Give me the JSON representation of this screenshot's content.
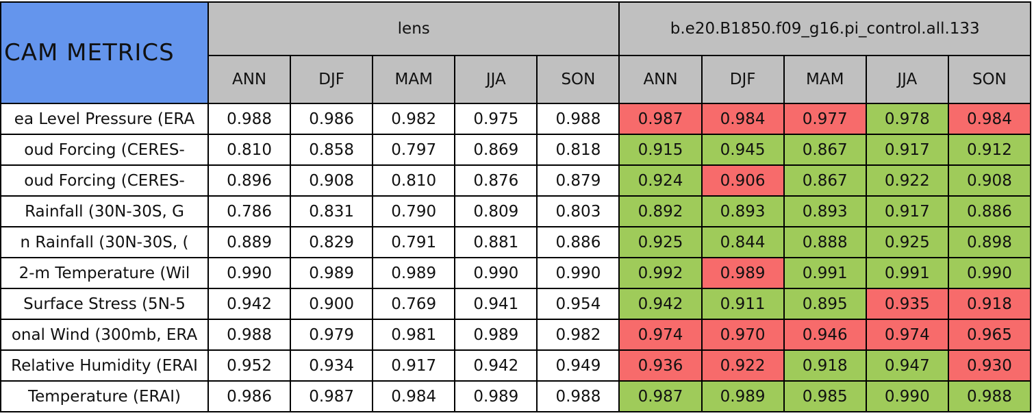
{
  "table": {
    "title": "CAM METRICS",
    "groups": [
      {
        "name": "lens",
        "columns": [
          "ANN",
          "DJF",
          "MAM",
          "JJA",
          "SON"
        ]
      },
      {
        "name": "b.e20.B1850.f09_g16.pi_control.all.133",
        "columns": [
          "ANN",
          "DJF",
          "MAM",
          "JJA",
          "SON"
        ]
      }
    ],
    "rows": [
      {
        "label": "ea Level Pressure (ERA",
        "cells": [
          "0.988",
          "0.986",
          "0.982",
          "0.975",
          "0.988",
          "0.987",
          "0.984",
          "0.977",
          "0.978",
          "0.984"
        ],
        "fills": [
          "#ffffff",
          "#ffffff",
          "#ffffff",
          "#ffffff",
          "#ffffff",
          "#f76b6b",
          "#f76b6b",
          "#f76b6b",
          "#9fcb5a",
          "#f76b6b"
        ]
      },
      {
        "label": "oud Forcing (CERES-",
        "cells": [
          "0.810",
          "0.858",
          "0.797",
          "0.869",
          "0.818",
          "0.915",
          "0.945",
          "0.867",
          "0.917",
          "0.912"
        ],
        "fills": [
          "#ffffff",
          "#ffffff",
          "#ffffff",
          "#ffffff",
          "#ffffff",
          "#9fcb5a",
          "#9fcb5a",
          "#9fcb5a",
          "#9fcb5a",
          "#9fcb5a"
        ]
      },
      {
        "label": "oud Forcing (CERES-",
        "cells": [
          "0.896",
          "0.908",
          "0.810",
          "0.876",
          "0.879",
          "0.924",
          "0.906",
          "0.867",
          "0.922",
          "0.908"
        ],
        "fills": [
          "#ffffff",
          "#ffffff",
          "#ffffff",
          "#ffffff",
          "#ffffff",
          "#9fcb5a",
          "#f76b6b",
          "#9fcb5a",
          "#9fcb5a",
          "#9fcb5a"
        ]
      },
      {
        "label": "Rainfall (30N-30S, G",
        "cells": [
          "0.786",
          "0.831",
          "0.790",
          "0.809",
          "0.803",
          "0.892",
          "0.893",
          "0.893",
          "0.917",
          "0.886"
        ],
        "fills": [
          "#ffffff",
          "#ffffff",
          "#ffffff",
          "#ffffff",
          "#ffffff",
          "#9fcb5a",
          "#9fcb5a",
          "#9fcb5a",
          "#9fcb5a",
          "#9fcb5a"
        ]
      },
      {
        "label": "n Rainfall (30N-30S, (",
        "cells": [
          "0.889",
          "0.829",
          "0.791",
          "0.881",
          "0.886",
          "0.925",
          "0.844",
          "0.888",
          "0.925",
          "0.898"
        ],
        "fills": [
          "#ffffff",
          "#ffffff",
          "#ffffff",
          "#ffffff",
          "#ffffff",
          "#9fcb5a",
          "#9fcb5a",
          "#9fcb5a",
          "#9fcb5a",
          "#9fcb5a"
        ]
      },
      {
        "label": "2-m Temperature (Wil",
        "cells": [
          "0.990",
          "0.989",
          "0.989",
          "0.990",
          "0.990",
          "0.992",
          "0.989",
          "0.991",
          "0.991",
          "0.990"
        ],
        "fills": [
          "#ffffff",
          "#ffffff",
          "#ffffff",
          "#ffffff",
          "#ffffff",
          "#9fcb5a",
          "#f76b6b",
          "#9fcb5a",
          "#9fcb5a",
          "#9fcb5a"
        ]
      },
      {
        "label": "Surface Stress (5N-5",
        "cells": [
          "0.942",
          "0.900",
          "0.769",
          "0.941",
          "0.954",
          "0.942",
          "0.911",
          "0.895",
          "0.935",
          "0.918"
        ],
        "fills": [
          "#ffffff",
          "#ffffff",
          "#ffffff",
          "#ffffff",
          "#ffffff",
          "#9fcb5a",
          "#9fcb5a",
          "#9fcb5a",
          "#f76b6b",
          "#f76b6b"
        ]
      },
      {
        "label": "onal Wind (300mb, ERA",
        "cells": [
          "0.988",
          "0.979",
          "0.981",
          "0.989",
          "0.982",
          "0.974",
          "0.970",
          "0.946",
          "0.974",
          "0.965"
        ],
        "fills": [
          "#ffffff",
          "#ffffff",
          "#ffffff",
          "#ffffff",
          "#ffffff",
          "#f76b6b",
          "#f76b6b",
          "#f76b6b",
          "#f76b6b",
          "#f76b6b"
        ]
      },
      {
        "label": "Relative Humidity (ERAI",
        "cells": [
          "0.952",
          "0.934",
          "0.917",
          "0.942",
          "0.949",
          "0.936",
          "0.922",
          "0.918",
          "0.947",
          "0.930"
        ],
        "fills": [
          "#ffffff",
          "#ffffff",
          "#ffffff",
          "#ffffff",
          "#ffffff",
          "#f76b6b",
          "#f76b6b",
          "#9fcb5a",
          "#9fcb5a",
          "#f76b6b"
        ]
      },
      {
        "label": "Temperature (ERAI)",
        "cells": [
          "0.986",
          "0.987",
          "0.984",
          "0.989",
          "0.988",
          "0.987",
          "0.989",
          "0.985",
          "0.990",
          "0.988"
        ],
        "fills": [
          "#ffffff",
          "#ffffff",
          "#ffffff",
          "#ffffff",
          "#ffffff",
          "#9fcb5a",
          "#9fcb5a",
          "#9fcb5a",
          "#9fcb5a",
          "#9fcb5a"
        ]
      }
    ]
  }
}
